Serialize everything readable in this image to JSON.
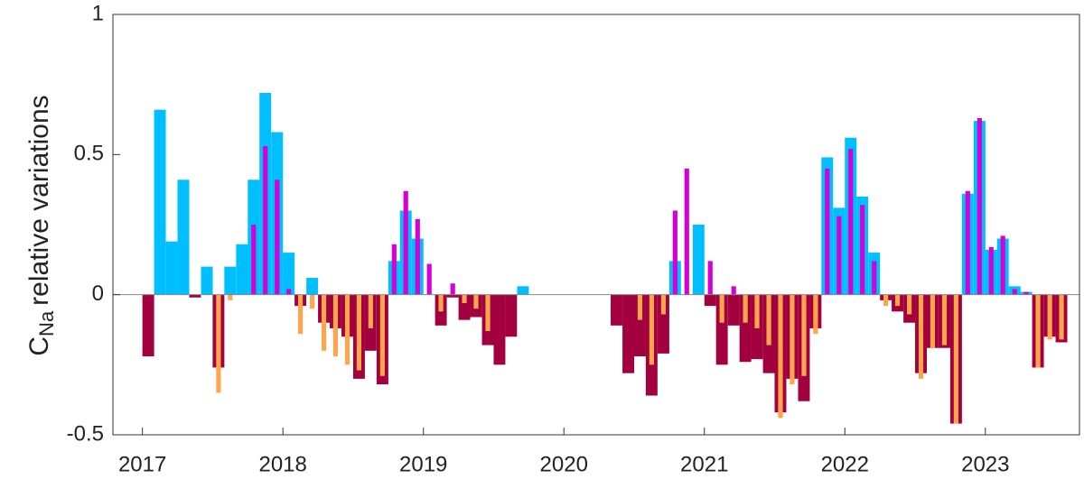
{
  "chart_data": {
    "type": "bar",
    "ylabel": [
      "C",
      "Na",
      "relative variations"
    ],
    "x": [
      2017,
      2017.083,
      2017.167,
      2017.25,
      2017.333,
      2017.417,
      2017.5,
      2017.583,
      2017.667,
      2017.75,
      2017.833,
      2017.917,
      2018,
      2018.083,
      2018.167,
      2018.25,
      2018.333,
      2018.417,
      2018.5,
      2018.583,
      2018.667,
      2018.75,
      2018.833,
      2018.917,
      2019,
      2019.083,
      2019.167,
      2019.25,
      2019.333,
      2019.417,
      2019.5,
      2019.583,
      2019.667,
      2020.333,
      2020.417,
      2020.5,
      2020.583,
      2020.667,
      2020.75,
      2020.833,
      2020.917,
      2021,
      2021.083,
      2021.167,
      2021.25,
      2021.333,
      2021.417,
      2021.5,
      2021.583,
      2021.667,
      2021.75,
      2021.833,
      2021.917,
      2022,
      2022.083,
      2022.167,
      2022.25,
      2022.333,
      2022.417,
      2022.5,
      2022.583,
      2022.667,
      2022.75,
      2022.833,
      2022.917,
      2023,
      2023.083,
      2023.167,
      2023.25,
      2023.333,
      2023.417,
      2023.5
    ],
    "series": [
      {
        "color": "#00bfff",
        "negative_color": "#a3003f",
        "values": [
          -0.22,
          0.66,
          0.19,
          0.41,
          -0.01,
          0.1,
          -0.26,
          0.1,
          0.18,
          0.41,
          0.72,
          0.58,
          0.15,
          -0.04,
          0.06,
          -0.1,
          -0.12,
          -0.15,
          -0.3,
          -0.2,
          -0.32,
          0.12,
          0.3,
          0.2,
          null,
          -0.11,
          -0.01,
          -0.09,
          -0.08,
          -0.18,
          -0.25,
          -0.15,
          0.03,
          -0.11,
          -0.28,
          -0.22,
          -0.36,
          -0.21,
          0.12,
          null,
          0.25,
          -0.04,
          -0.25,
          -0.11,
          -0.24,
          -0.23,
          -0.28,
          -0.42,
          -0.3,
          -0.38,
          -0.12,
          0.49,
          0.31,
          0.56,
          0.35,
          0.15,
          -0.02,
          -0.06,
          -0.1,
          -0.28,
          -0.19,
          -0.19,
          -0.46,
          0.36,
          0.62,
          0.16,
          0.2,
          0.03,
          0.01,
          -0.26,
          -0.15,
          -0.17
        ]
      },
      {
        "color": "#d400d4",
        "negative_color": "#ffa64d",
        "values": [
          null,
          null,
          null,
          null,
          null,
          null,
          -0.35,
          -0.02,
          null,
          0.25,
          0.53,
          0.41,
          0.02,
          -0.14,
          -0.05,
          -0.2,
          -0.22,
          -0.25,
          -0.27,
          -0.12,
          -0.29,
          0.18,
          0.37,
          0.27,
          0.11,
          -0.06,
          0.04,
          -0.03,
          -0.05,
          -0.13,
          null,
          null,
          null,
          null,
          null,
          -0.09,
          -0.25,
          -0.07,
          0.3,
          0.45,
          null,
          0.12,
          -0.1,
          0.03,
          -0.1,
          -0.12,
          -0.18,
          -0.44,
          -0.32,
          -0.29,
          -0.14,
          0.45,
          0.28,
          0.52,
          0.32,
          0.12,
          -0.04,
          -0.04,
          -0.07,
          -0.3,
          -0.19,
          -0.18,
          -0.46,
          0.37,
          0.63,
          0.17,
          0.21,
          0.02,
          0.01,
          -0.26,
          -0.16,
          -0.16
        ]
      }
    ],
    "xlim": [
      2016.79,
      2023.67
    ],
    "xticks": [
      2017,
      2018,
      2019,
      2020,
      2021,
      2022,
      2023
    ],
    "ylim": [
      -0.5,
      1
    ],
    "yticks": [
      -0.5,
      0,
      0.5,
      1
    ],
    "grid": false
  }
}
